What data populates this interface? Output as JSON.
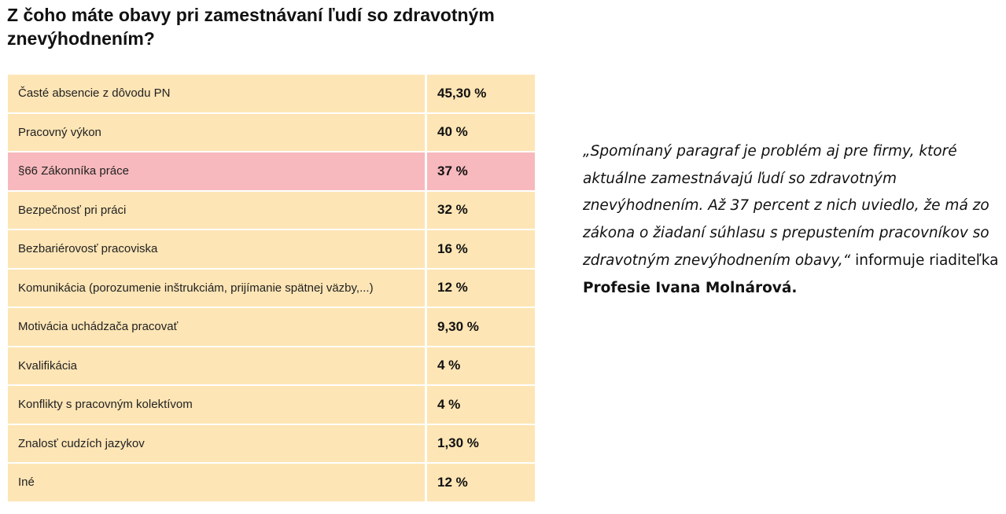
{
  "title": "Z čoho máte obavy pri zamestnávaní ľudí so zdravotným znevýhodnením?",
  "rows": [
    {
      "label": "Časté absencie z dôvodu PN",
      "value": "45,30 %"
    },
    {
      "label": "Pracovný výkon",
      "value": "40 %"
    },
    {
      "label": "§66 Zákonníka práce",
      "value": "37 %"
    },
    {
      "label": "Bezpečnosť pri práci",
      "value": "32 %"
    },
    {
      "label": "Bezbariérovosť pracoviska",
      "value": "16 %"
    },
    {
      "label": "Komunikácia (porozumenie inštrukciám, prijímanie spätnej väzby,...)",
      "value": "12 %"
    },
    {
      "label": "Motivácia uchádzača pracovať",
      "value": "9,30 %"
    },
    {
      "label": "Kvalifikácia",
      "value": "4 %"
    },
    {
      "label": "Konflikty s pracovným kolektívom",
      "value": "4 %"
    },
    {
      "label": "Znalosť cudzích jazykov",
      "value": "1,30 %"
    },
    {
      "label": "Iné",
      "value": "12 %"
    }
  ],
  "highlight_color": "#f7b9bd",
  "row_color": "#fde5b5",
  "quote": {
    "text": "„Spomínaný paragraf je problém aj pre firmy, ktoré aktuálne zamestnávajú ľudí so zdravotným znevýhodnením. Až 37 percent z nich uviedlo, že má zo zákona o žiadaní súhlasu s prepustením pracovníkov so zdravotným znevýhodnením obavy,“",
    "attribution": " informuje riaditeľka ",
    "name": "Profesie Ivana Molnárová."
  }
}
